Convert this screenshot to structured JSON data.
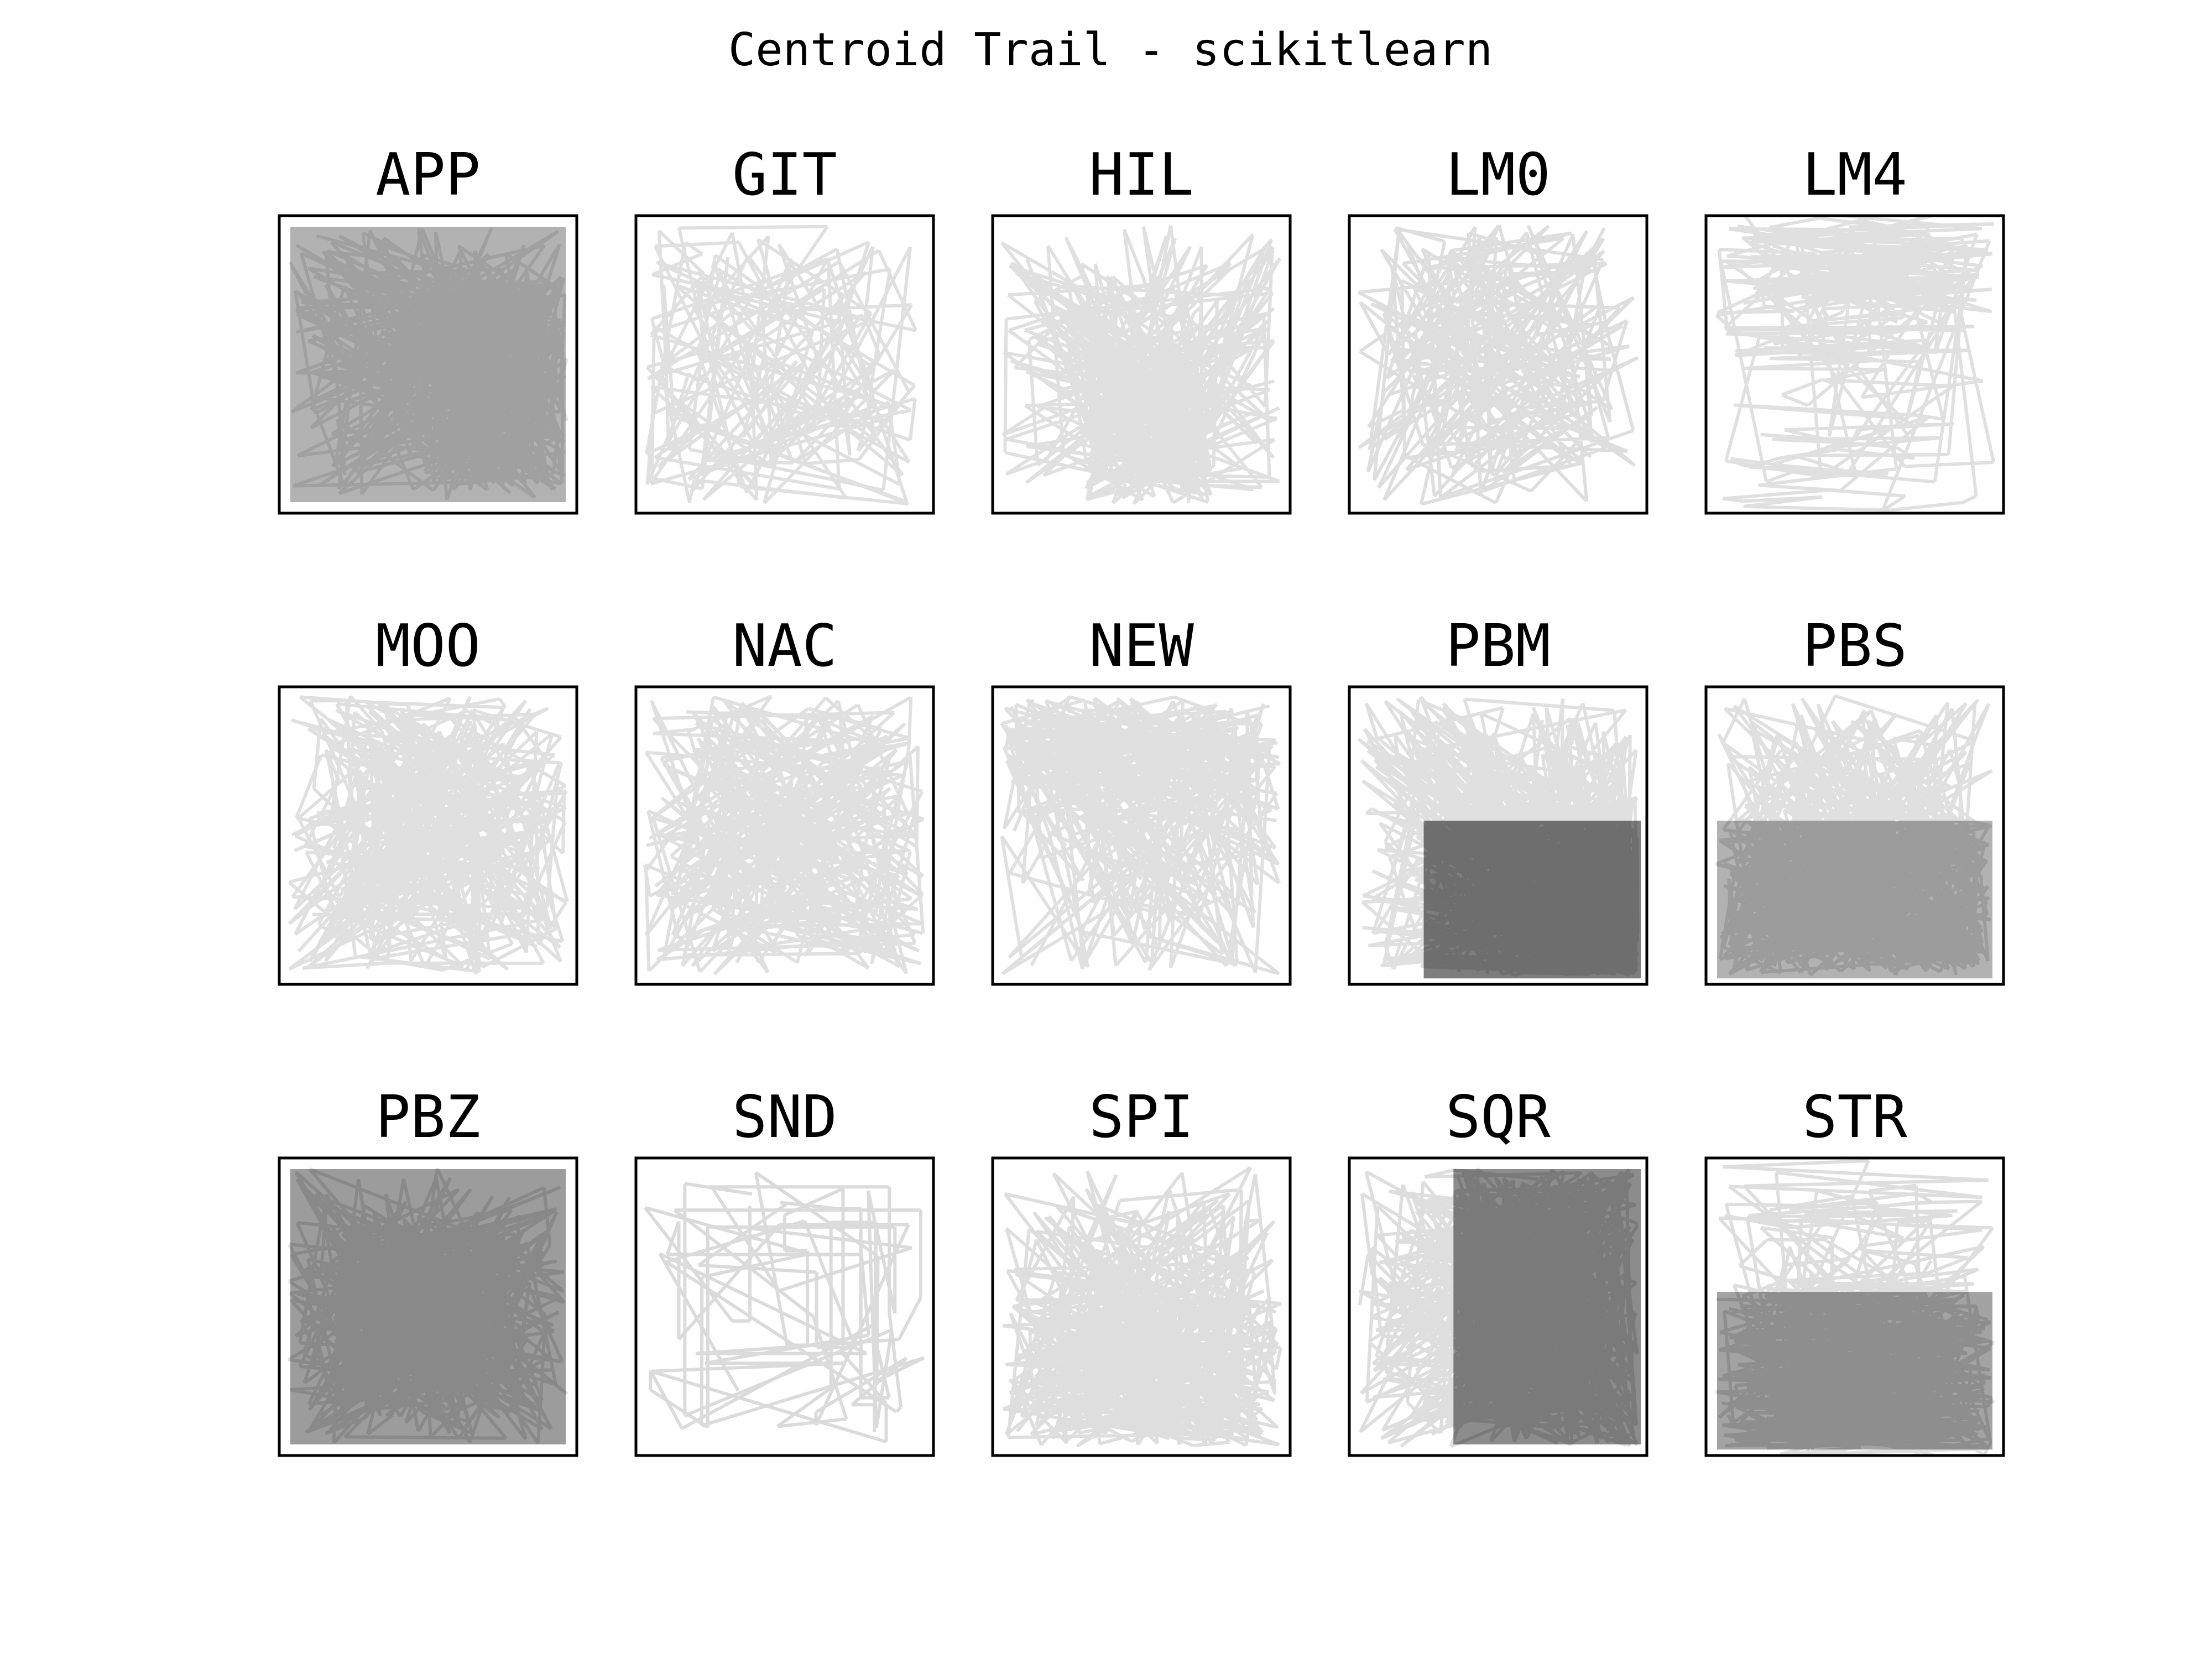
{
  "title": "Centroid Trail - scikitlearn",
  "chart_data": {
    "type": "line",
    "title": "Centroid Trail - scikitlearn",
    "xlim": [
      0,
      1
    ],
    "ylim": [
      0,
      1
    ],
    "grid": false,
    "axes_ticks": false,
    "line_color": "#000000",
    "panels": [
      {
        "name": "APP",
        "density": 0.9,
        "line_count": 520,
        "alpha": 0.1,
        "darkest_region": "center-right"
      },
      {
        "name": "GIT",
        "density": 0.3,
        "line_count": 160,
        "alpha": 0.12,
        "darkest_region": "none"
      },
      {
        "name": "HIL",
        "density": 0.8,
        "line_count": 420,
        "alpha": 0.12,
        "darkest_region": "bottom-center"
      },
      {
        "name": "LM0",
        "density": 0.45,
        "line_count": 230,
        "alpha": 0.13,
        "darkest_region": "none"
      },
      {
        "name": "LM4",
        "density": 0.6,
        "line_count": 300,
        "alpha": 0.12,
        "darkest_region": "top"
      },
      {
        "name": "MOO",
        "density": 0.65,
        "line_count": 330,
        "alpha": 0.12,
        "darkest_region": "none"
      },
      {
        "name": "NAC",
        "density": 0.6,
        "line_count": 300,
        "alpha": 0.12,
        "darkest_region": "none"
      },
      {
        "name": "NEW",
        "density": 0.65,
        "line_count": 330,
        "alpha": 0.12,
        "darkest_region": "top"
      },
      {
        "name": "PBM",
        "density": 0.97,
        "line_count": 650,
        "alpha": 0.12,
        "darkest_region": "bottom-right"
      },
      {
        "name": "PBS",
        "density": 0.9,
        "line_count": 560,
        "alpha": 0.12,
        "darkest_region": "bottom"
      },
      {
        "name": "PBZ",
        "density": 0.93,
        "line_count": 580,
        "alpha": 0.12,
        "darkest_region": "center"
      },
      {
        "name": "SND",
        "density": 0.18,
        "line_count": 90,
        "alpha": 0.14,
        "darkest_region": "none"
      },
      {
        "name": "SPI",
        "density": 0.8,
        "line_count": 430,
        "alpha": 0.13,
        "darkest_region": "bottom"
      },
      {
        "name": "SQR",
        "density": 0.95,
        "line_count": 600,
        "alpha": 0.13,
        "darkest_region": "right"
      },
      {
        "name": "STR",
        "density": 0.92,
        "line_count": 560,
        "alpha": 0.13,
        "darkest_region": "bottom"
      }
    ]
  }
}
